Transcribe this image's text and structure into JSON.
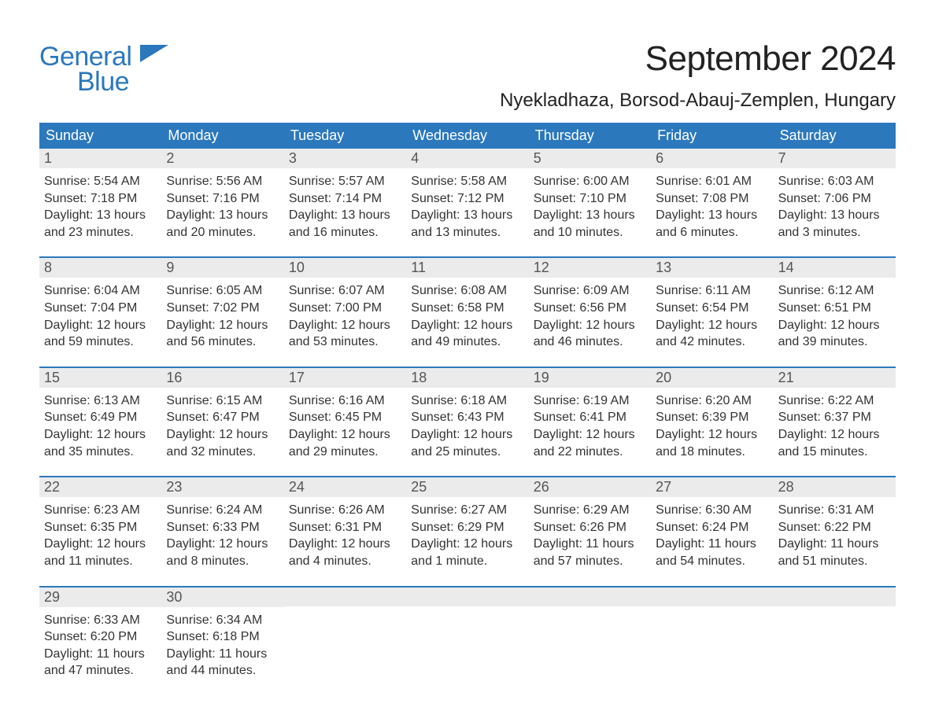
{
  "logo": {
    "word1": "General",
    "word2": "Blue"
  },
  "header": {
    "month_title": "September 2024",
    "location": "Nyekladhaza, Borsod-Abauj-Zemplen, Hungary"
  },
  "colors": {
    "brand_blue": "#2b78bd",
    "header_bg": "#2b78bd",
    "daynum_bg": "#ebebeb",
    "text": "#333333",
    "page_bg": "#ffffff"
  },
  "calendar": {
    "weekdays": [
      "Sunday",
      "Monday",
      "Tuesday",
      "Wednesday",
      "Thursday",
      "Friday",
      "Saturday"
    ],
    "weeks": [
      [
        {
          "n": "1",
          "sunrise": "Sunrise: 5:54 AM",
          "sunset": "Sunset: 7:18 PM",
          "dl1": "Daylight: 13 hours",
          "dl2": "and 23 minutes."
        },
        {
          "n": "2",
          "sunrise": "Sunrise: 5:56 AM",
          "sunset": "Sunset: 7:16 PM",
          "dl1": "Daylight: 13 hours",
          "dl2": "and 20 minutes."
        },
        {
          "n": "3",
          "sunrise": "Sunrise: 5:57 AM",
          "sunset": "Sunset: 7:14 PM",
          "dl1": "Daylight: 13 hours",
          "dl2": "and 16 minutes."
        },
        {
          "n": "4",
          "sunrise": "Sunrise: 5:58 AM",
          "sunset": "Sunset: 7:12 PM",
          "dl1": "Daylight: 13 hours",
          "dl2": "and 13 minutes."
        },
        {
          "n": "5",
          "sunrise": "Sunrise: 6:00 AM",
          "sunset": "Sunset: 7:10 PM",
          "dl1": "Daylight: 13 hours",
          "dl2": "and 10 minutes."
        },
        {
          "n": "6",
          "sunrise": "Sunrise: 6:01 AM",
          "sunset": "Sunset: 7:08 PM",
          "dl1": "Daylight: 13 hours",
          "dl2": "and 6 minutes."
        },
        {
          "n": "7",
          "sunrise": "Sunrise: 6:03 AM",
          "sunset": "Sunset: 7:06 PM",
          "dl1": "Daylight: 13 hours",
          "dl2": "and 3 minutes."
        }
      ],
      [
        {
          "n": "8",
          "sunrise": "Sunrise: 6:04 AM",
          "sunset": "Sunset: 7:04 PM",
          "dl1": "Daylight: 12 hours",
          "dl2": "and 59 minutes."
        },
        {
          "n": "9",
          "sunrise": "Sunrise: 6:05 AM",
          "sunset": "Sunset: 7:02 PM",
          "dl1": "Daylight: 12 hours",
          "dl2": "and 56 minutes."
        },
        {
          "n": "10",
          "sunrise": "Sunrise: 6:07 AM",
          "sunset": "Sunset: 7:00 PM",
          "dl1": "Daylight: 12 hours",
          "dl2": "and 53 minutes."
        },
        {
          "n": "11",
          "sunrise": "Sunrise: 6:08 AM",
          "sunset": "Sunset: 6:58 PM",
          "dl1": "Daylight: 12 hours",
          "dl2": "and 49 minutes."
        },
        {
          "n": "12",
          "sunrise": "Sunrise: 6:09 AM",
          "sunset": "Sunset: 6:56 PM",
          "dl1": "Daylight: 12 hours",
          "dl2": "and 46 minutes."
        },
        {
          "n": "13",
          "sunrise": "Sunrise: 6:11 AM",
          "sunset": "Sunset: 6:54 PM",
          "dl1": "Daylight: 12 hours",
          "dl2": "and 42 minutes."
        },
        {
          "n": "14",
          "sunrise": "Sunrise: 6:12 AM",
          "sunset": "Sunset: 6:51 PM",
          "dl1": "Daylight: 12 hours",
          "dl2": "and 39 minutes."
        }
      ],
      [
        {
          "n": "15",
          "sunrise": "Sunrise: 6:13 AM",
          "sunset": "Sunset: 6:49 PM",
          "dl1": "Daylight: 12 hours",
          "dl2": "and 35 minutes."
        },
        {
          "n": "16",
          "sunrise": "Sunrise: 6:15 AM",
          "sunset": "Sunset: 6:47 PM",
          "dl1": "Daylight: 12 hours",
          "dl2": "and 32 minutes."
        },
        {
          "n": "17",
          "sunrise": "Sunrise: 6:16 AM",
          "sunset": "Sunset: 6:45 PM",
          "dl1": "Daylight: 12 hours",
          "dl2": "and 29 minutes."
        },
        {
          "n": "18",
          "sunrise": "Sunrise: 6:18 AM",
          "sunset": "Sunset: 6:43 PM",
          "dl1": "Daylight: 12 hours",
          "dl2": "and 25 minutes."
        },
        {
          "n": "19",
          "sunrise": "Sunrise: 6:19 AM",
          "sunset": "Sunset: 6:41 PM",
          "dl1": "Daylight: 12 hours",
          "dl2": "and 22 minutes."
        },
        {
          "n": "20",
          "sunrise": "Sunrise: 6:20 AM",
          "sunset": "Sunset: 6:39 PM",
          "dl1": "Daylight: 12 hours",
          "dl2": "and 18 minutes."
        },
        {
          "n": "21",
          "sunrise": "Sunrise: 6:22 AM",
          "sunset": "Sunset: 6:37 PM",
          "dl1": "Daylight: 12 hours",
          "dl2": "and 15 minutes."
        }
      ],
      [
        {
          "n": "22",
          "sunrise": "Sunrise: 6:23 AM",
          "sunset": "Sunset: 6:35 PM",
          "dl1": "Daylight: 12 hours",
          "dl2": "and 11 minutes."
        },
        {
          "n": "23",
          "sunrise": "Sunrise: 6:24 AM",
          "sunset": "Sunset: 6:33 PM",
          "dl1": "Daylight: 12 hours",
          "dl2": "and 8 minutes."
        },
        {
          "n": "24",
          "sunrise": "Sunrise: 6:26 AM",
          "sunset": "Sunset: 6:31 PM",
          "dl1": "Daylight: 12 hours",
          "dl2": "and 4 minutes."
        },
        {
          "n": "25",
          "sunrise": "Sunrise: 6:27 AM",
          "sunset": "Sunset: 6:29 PM",
          "dl1": "Daylight: 12 hours",
          "dl2": "and 1 minute."
        },
        {
          "n": "26",
          "sunrise": "Sunrise: 6:29 AM",
          "sunset": "Sunset: 6:26 PM",
          "dl1": "Daylight: 11 hours",
          "dl2": "and 57 minutes."
        },
        {
          "n": "27",
          "sunrise": "Sunrise: 6:30 AM",
          "sunset": "Sunset: 6:24 PM",
          "dl1": "Daylight: 11 hours",
          "dl2": "and 54 minutes."
        },
        {
          "n": "28",
          "sunrise": "Sunrise: 6:31 AM",
          "sunset": "Sunset: 6:22 PM",
          "dl1": "Daylight: 11 hours",
          "dl2": "and 51 minutes."
        }
      ],
      [
        {
          "n": "29",
          "sunrise": "Sunrise: 6:33 AM",
          "sunset": "Sunset: 6:20 PM",
          "dl1": "Daylight: 11 hours",
          "dl2": "and 47 minutes."
        },
        {
          "n": "30",
          "sunrise": "Sunrise: 6:34 AM",
          "sunset": "Sunset: 6:18 PM",
          "dl1": "Daylight: 11 hours",
          "dl2": "and 44 minutes."
        },
        {
          "empty": true
        },
        {
          "empty": true
        },
        {
          "empty": true
        },
        {
          "empty": true
        },
        {
          "empty": true
        }
      ]
    ]
  }
}
